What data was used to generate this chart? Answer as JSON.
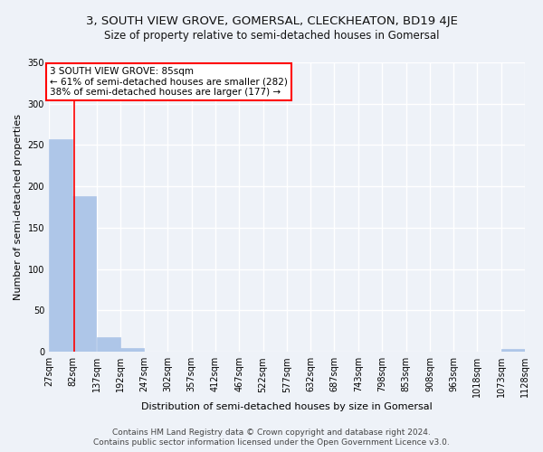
{
  "title": "3, SOUTH VIEW GROVE, GOMERSAL, CLECKHEATON, BD19 4JE",
  "subtitle": "Size of property relative to semi-detached houses in Gomersal",
  "xlabel": "Distribution of semi-detached houses by size in Gomersal",
  "ylabel": "Number of semi-detached properties",
  "bin_edges": [
    27,
    82,
    137,
    192,
    247,
    302,
    357,
    412,
    467,
    522,
    577,
    632,
    687,
    743,
    798,
    853,
    908,
    963,
    1018,
    1073,
    1128
  ],
  "bar_heights": [
    257,
    188,
    18,
    5,
    0,
    0,
    0,
    0,
    0,
    0,
    0,
    0,
    0,
    0,
    0,
    0,
    0,
    0,
    0,
    3
  ],
  "bar_color": "#aec6e8",
  "property_line_x": 85,
  "annotation_text": "3 SOUTH VIEW GROVE: 85sqm\n← 61% of semi-detached houses are smaller (282)\n38% of semi-detached houses are larger (177) →",
  "annotation_box_color": "white",
  "annotation_box_edge_color": "red",
  "property_line_color": "red",
  "ylim": [
    0,
    350
  ],
  "yticks": [
    0,
    50,
    100,
    150,
    200,
    250,
    300,
    350
  ],
  "footer_line1": "Contains HM Land Registry data © Crown copyright and database right 2024.",
  "footer_line2": "Contains public sector information licensed under the Open Government Licence v3.0.",
  "background_color": "#eef2f8",
  "plot_background_color": "#eef2f8",
  "grid_color": "#ffffff",
  "title_fontsize": 9.5,
  "subtitle_fontsize": 8.5,
  "axis_label_fontsize": 8,
  "tick_fontsize": 7,
  "annotation_fontsize": 7.5,
  "footer_fontsize": 6.5
}
